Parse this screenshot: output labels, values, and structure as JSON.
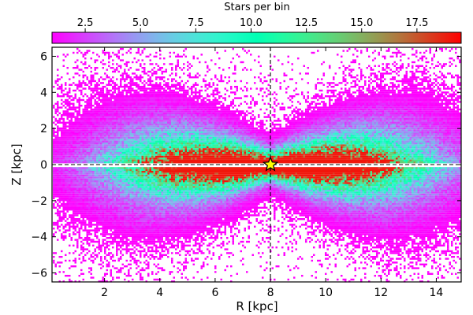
{
  "chart_data": {
    "type": "heatmap",
    "title": "",
    "xlabel": "R [kpc]",
    "ylabel": "Z [kpc]",
    "xlim": [
      0.1,
      14.9
    ],
    "ylim": [
      -6.5,
      6.5
    ],
    "xticks": [
      2,
      4,
      6,
      8,
      10,
      12,
      14
    ],
    "yticks": [
      -6,
      -4,
      -2,
      0,
      2,
      4,
      6
    ],
    "colorbar": {
      "label": "Stars per bin",
      "range": [
        1,
        19.5
      ],
      "ticks": [
        2.5,
        5.0,
        7.5,
        10.0,
        12.5,
        15.0,
        17.5
      ],
      "tick_labels": [
        "2.5",
        "5.0",
        "7.5",
        "10.0",
        "12.5",
        "15.0",
        "17.5"
      ],
      "colormap": "rainbow",
      "stops": [
        "#8000ff",
        "#1996f3",
        "#4df3ce",
        "#b2f396",
        "#ff964f",
        "#ff0000"
      ]
    },
    "reference_lines": {
      "r": 8.0,
      "z": 0.0,
      "style": "dashed"
    },
    "sun_marker": {
      "r": 8.0,
      "z": 0.0,
      "shape": "star",
      "fill": "#ffff00"
    },
    "density_model": {
      "description": "disk star counts concentrated near the Sun, flaring wedges above and below the plane",
      "peak_r": 8.0,
      "r_extent": [
        0.5,
        14.5
      ],
      "z_extent": [
        -6.5,
        6.5
      ],
      "saturation_value": 19
    }
  }
}
